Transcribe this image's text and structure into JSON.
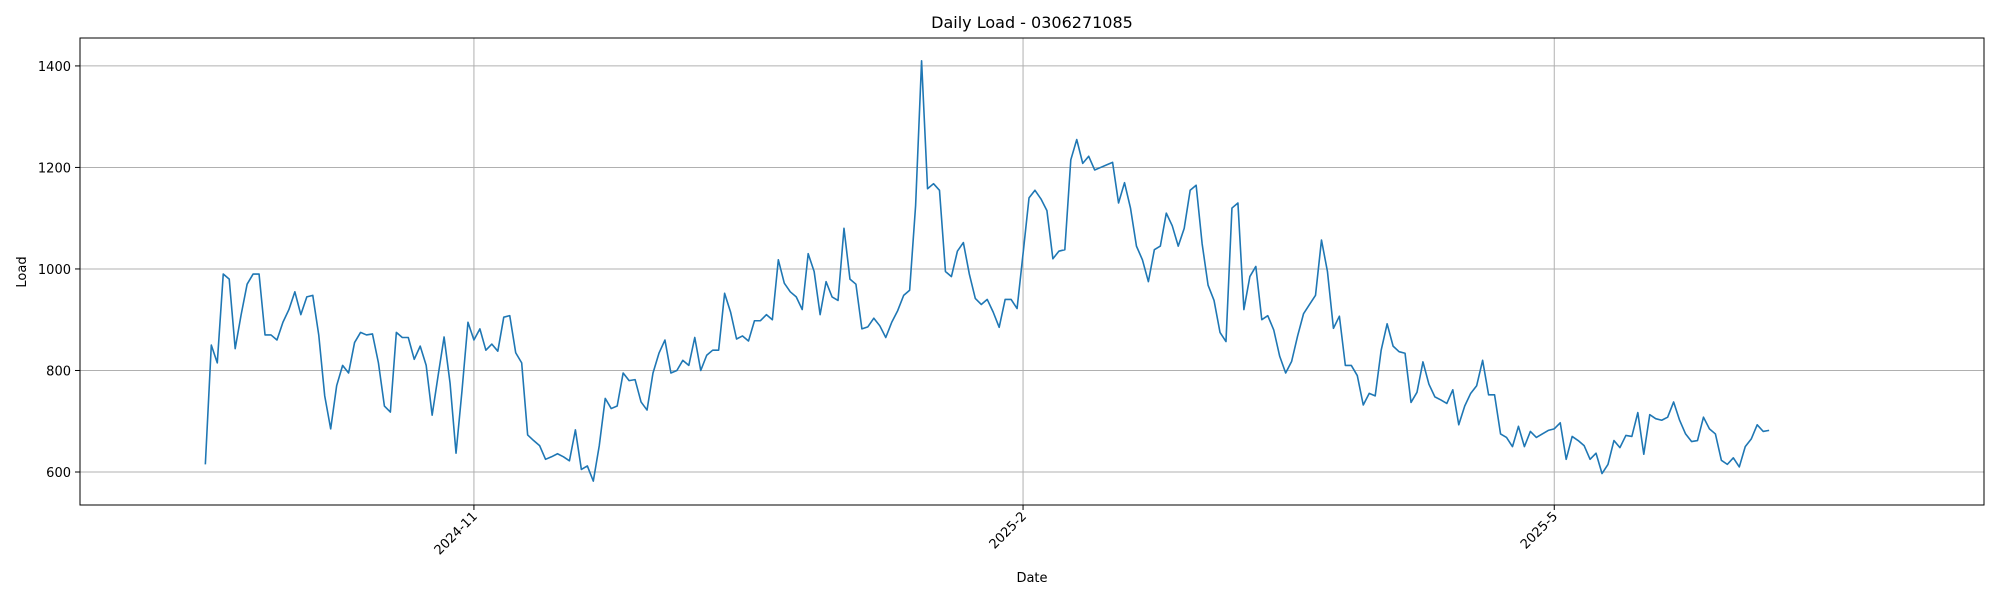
{
  "chart_data": {
    "type": "line",
    "title": "Daily Load - 0306271085",
    "xlabel": "Date",
    "ylabel": "Load",
    "x_start": "2024-09-17",
    "x_ticks": [
      {
        "date": "2024-11-01",
        "label": "2024-11"
      },
      {
        "date": "2025-02-01",
        "label": "2025-2"
      },
      {
        "date": "2025-05-01",
        "label": "2025-5"
      }
    ],
    "y_ticks": [
      600,
      800,
      1000,
      1200,
      1400
    ],
    "xlim": [
      "2024-08-27",
      "2025-07-12"
    ],
    "ylim": [
      535,
      1455
    ],
    "grid": true,
    "series": [
      {
        "color": "#1f77b4",
        "values": [
          615,
          850,
          815,
          990,
          980,
          843,
          910,
          970,
          990,
          990,
          870,
          870,
          860,
          895,
          920,
          955,
          910,
          945,
          948,
          870,
          750,
          685,
          770,
          810,
          795,
          855,
          875,
          870,
          872,
          815,
          730,
          718,
          875,
          865,
          865,
          822,
          848,
          810,
          712,
          790,
          866,
          775,
          637,
          760,
          895,
          860,
          882,
          840,
          852,
          838,
          905,
          908,
          835,
          815,
          673,
          662,
          652,
          625,
          630,
          636,
          630,
          622,
          683,
          605,
          612,
          582,
          652,
          745,
          725,
          730,
          795,
          780,
          782,
          738,
          722,
          795,
          834,
          860,
          795,
          800,
          820,
          810,
          865,
          800,
          830,
          840,
          840,
          952,
          915,
          862,
          868,
          858,
          898,
          898,
          910,
          900,
          1018,
          972,
          955,
          945,
          920,
          1030,
          995,
          910,
          975,
          945,
          938,
          1080,
          980,
          970,
          882,
          886,
          903,
          888,
          865,
          895,
          918,
          948,
          958,
          1125,
          1410,
          1158,
          1168,
          1155,
          995,
          985,
          1035,
          1052,
          990,
          942,
          930,
          940,
          915,
          885,
          940,
          940,
          922,
          1030,
          1140,
          1155,
          1138,
          1115,
          1020,
          1035,
          1038,
          1215,
          1255,
          1208,
          1222,
          1195,
          1200,
          1205,
          1210,
          1130,
          1170,
          1120,
          1045,
          1018,
          975,
          1038,
          1045,
          1110,
          1085,
          1045,
          1080,
          1155,
          1165,
          1050,
          968,
          938,
          875,
          857,
          1120,
          1130,
          920,
          985,
          1005,
          900,
          908,
          880,
          828,
          795,
          818,
          868,
          912,
          930,
          948,
          1057,
          995,
          883,
          907,
          810,
          810,
          790,
          732,
          755,
          750,
          840,
          892,
          848,
          837,
          834,
          737,
          757,
          817,
          773,
          748,
          742,
          735,
          762,
          693,
          730,
          755,
          770,
          820,
          752,
          752,
          675,
          668,
          650,
          690,
          650,
          680,
          668,
          675,
          682,
          685,
          697,
          625,
          670,
          662,
          652,
          625,
          637,
          597,
          615,
          662,
          648,
          672,
          670,
          717,
          635,
          713,
          705,
          702,
          708,
          738,
          702,
          675,
          660,
          662,
          708,
          685,
          675,
          623,
          615,
          628,
          610,
          650,
          665,
          693,
          680,
          682
        ]
      }
    ]
  }
}
